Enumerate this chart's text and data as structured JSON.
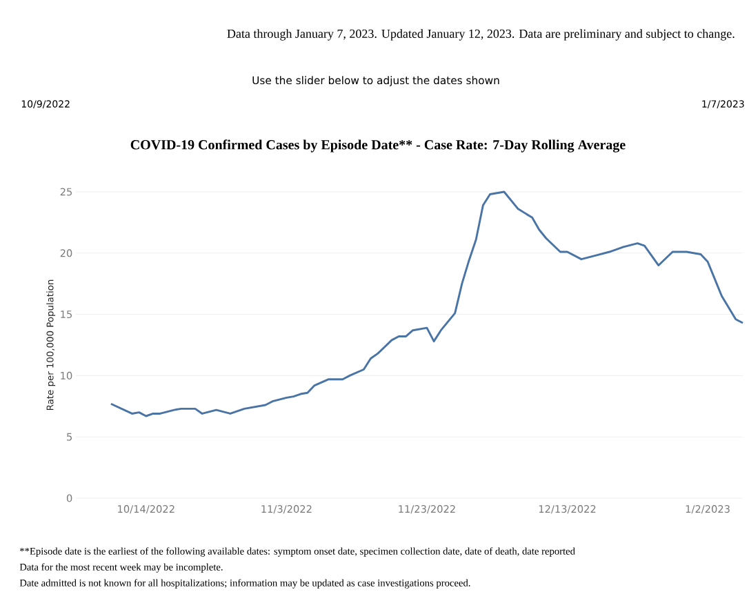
{
  "chart_data": {
    "type": "line",
    "title": "COVID-19  Confirmed Cases by Episode Date** - Case Rate: 7-Day Rolling Average",
    "ylabel": "Rate per 100,000 Population",
    "x": [
      "2022-10-09",
      "2022-10-12",
      "2022-10-13",
      "2022-10-14",
      "2022-10-15",
      "2022-10-16",
      "2022-10-18",
      "2022-10-19",
      "2022-10-21",
      "2022-10-22",
      "2022-10-24",
      "2022-10-26",
      "2022-10-28",
      "2022-10-31",
      "2022-11-01",
      "2022-11-03",
      "2022-11-04",
      "2022-11-05",
      "2022-11-06",
      "2022-11-07",
      "2022-11-09",
      "2022-11-11",
      "2022-11-12",
      "2022-11-14",
      "2022-11-15",
      "2022-11-16",
      "2022-11-18",
      "2022-11-19",
      "2022-11-20",
      "2022-11-21",
      "2022-11-23",
      "2022-11-24",
      "2022-11-25",
      "2022-11-26",
      "2022-11-27",
      "2022-11-28",
      "2022-11-29",
      "2022-11-30",
      "2022-12-01",
      "2022-12-02",
      "2022-12-03",
      "2022-12-04",
      "2022-12-06",
      "2022-12-08",
      "2022-12-09",
      "2022-12-10",
      "2022-12-12",
      "2022-12-13",
      "2022-12-15",
      "2022-12-17",
      "2022-12-19",
      "2022-12-21",
      "2022-12-23",
      "2022-12-24",
      "2022-12-26",
      "2022-12-28",
      "2022-12-30",
      "2023-01-01",
      "2023-01-02",
      "2023-01-03",
      "2023-01-04",
      "2023-01-06",
      "2023-01-07"
    ],
    "values": [
      7.7,
      6.9,
      7.0,
      6.7,
      6.9,
      6.9,
      7.2,
      7.3,
      7.3,
      6.9,
      7.2,
      6.9,
      7.3,
      7.6,
      7.9,
      8.2,
      8.3,
      8.5,
      8.6,
      9.2,
      9.7,
      9.7,
      10.0,
      10.5,
      11.4,
      11.8,
      12.9,
      13.2,
      13.2,
      13.7,
      13.9,
      12.8,
      13.7,
      14.4,
      15.1,
      17.5,
      19.4,
      21.1,
      23.9,
      24.8,
      24.9,
      25.0,
      23.6,
      22.9,
      21.9,
      21.2,
      20.1,
      20.1,
      19.5,
      19.8,
      20.1,
      20.5,
      20.8,
      20.6,
      19.0,
      20.1,
      20.1,
      19.9,
      19.3,
      17.9,
      16.5,
      14.6,
      14.3
    ],
    "color": "#4a74a6",
    "xlim": [
      "2022-10-04",
      "2023-01-07"
    ],
    "ylim": [
      0,
      25
    ],
    "xticks": [
      {
        "value": "2022-10-14",
        "label": "10/14/2022"
      },
      {
        "value": "2022-11-03",
        "label": "11/3/2022"
      },
      {
        "value": "2022-11-23",
        "label": "11/23/2022"
      },
      {
        "value": "2022-12-13",
        "label": "12/13/2022"
      },
      {
        "value": "2023-01-02",
        "label": "1/2/2023"
      }
    ],
    "yticks": [
      0,
      5,
      10,
      15,
      20,
      25
    ],
    "grid": "y",
    "annotations": [
      "Data through January 7, 2023. Updated January 12, 2023. Data are preliminary and subject to change.",
      "Use the slider below to adjust the dates shown",
      "10/9/2022",
      "1/7/2023",
      "**Episode date is the earliest of the following available dates: symptom onset date, specimen collection date, date of death, date reported",
      "Data for the most recent week may be incomplete.",
      "Date admitted is not known for all hospitalizations; information may be updated as case investigations proceed."
    ]
  }
}
